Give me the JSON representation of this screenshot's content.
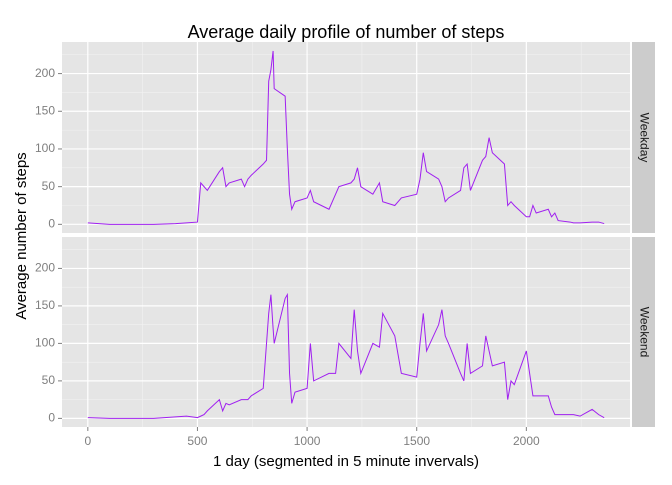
{
  "chart_data": {
    "type": "line",
    "title": "Average daily profile of number of steps",
    "x_label": "1 day (segmented in 5 minute invervals)",
    "y_label": "Average number of steps",
    "x": [
      0,
      100,
      200,
      300,
      400,
      450,
      500,
      515,
      530,
      545,
      600,
      615,
      630,
      645,
      700,
      715,
      730,
      745,
      800,
      815,
      825,
      835,
      845,
      850,
      900,
      910,
      920,
      930,
      945,
      1000,
      1015,
      1030,
      1100,
      1130,
      1145,
      1200,
      1215,
      1230,
      1245,
      1300,
      1330,
      1345,
      1400,
      1430,
      1500,
      1515,
      1530,
      1545,
      1600,
      1615,
      1630,
      1645,
      1700,
      1715,
      1730,
      1745,
      1800,
      1815,
      1830,
      1845,
      1900,
      1915,
      1930,
      1945,
      2000,
      2015,
      2030,
      2045,
      2100,
      2115,
      2130,
      2145,
      2200,
      2215,
      2245,
      2300,
      2330,
      2355
    ],
    "series": [
      {
        "name": "Weekday",
        "color": "#a020f0",
        "values": [
          2,
          0,
          0,
          0,
          1,
          2,
          3,
          55,
          50,
          45,
          70,
          75,
          50,
          55,
          60,
          50,
          60,
          65,
          80,
          85,
          190,
          205,
          230,
          180,
          170,
          100,
          40,
          20,
          30,
          35,
          45,
          30,
          20,
          40,
          50,
          55,
          60,
          75,
          50,
          40,
          55,
          30,
          25,
          35,
          40,
          60,
          95,
          70,
          60,
          50,
          30,
          35,
          45,
          75,
          80,
          45,
          85,
          90,
          115,
          95,
          80,
          25,
          30,
          25,
          10,
          10,
          25,
          15,
          20,
          10,
          15,
          5,
          3,
          2,
          2,
          3,
          3,
          1
        ]
      },
      {
        "name": "Weekend",
        "color": "#a020f0",
        "values": [
          1,
          0,
          0,
          0,
          2,
          3,
          1,
          3,
          5,
          10,
          25,
          10,
          20,
          18,
          25,
          25,
          25,
          30,
          40,
          100,
          140,
          165,
          120,
          100,
          160,
          165,
          60,
          20,
          35,
          40,
          100,
          50,
          60,
          60,
          100,
          80,
          145,
          90,
          60,
          100,
          95,
          140,
          110,
          60,
          55,
          100,
          140,
          90,
          125,
          145,
          110,
          100,
          60,
          50,
          100,
          60,
          70,
          110,
          90,
          70,
          75,
          25,
          50,
          45,
          90,
          60,
          30,
          30,
          30,
          15,
          5,
          5,
          5,
          5,
          3,
          12,
          5,
          1
        ]
      }
    ],
    "xlim": [
      -117.75,
      2472.75
    ],
    "xticks": [
      0,
      500,
      1000,
      1500,
      2000
    ],
    "ylim": [
      -11.5,
      241.9
    ],
    "yticks": [
      0,
      50,
      100,
      150,
      200
    ],
    "grid": true,
    "minor_grid": true
  }
}
